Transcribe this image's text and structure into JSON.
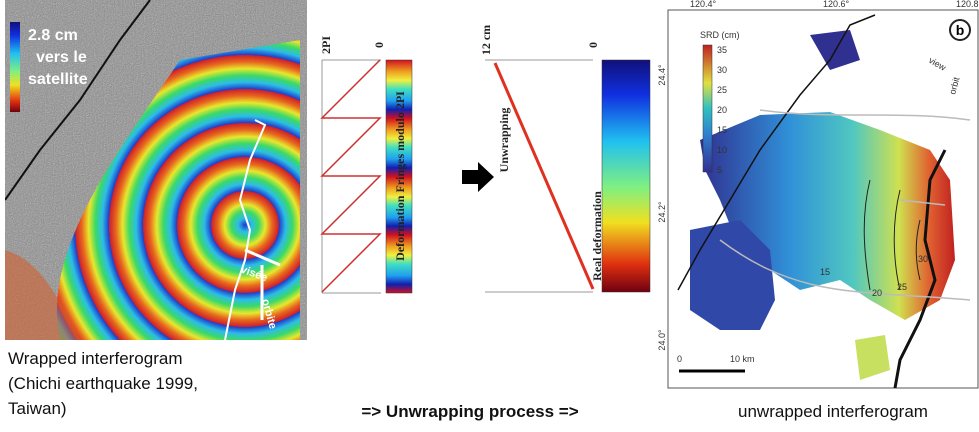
{
  "left_panel": {
    "legend": [
      "2.8 cm",
      "vers le",
      "satellite"
    ],
    "arrows": [
      "visée",
      "orbite"
    ],
    "caption": [
      "Wrapped interferogram",
      "(Chichi earthquake  1999,",
      "Taiwan)"
    ]
  },
  "middle_panel": {
    "wrapped": {
      "top_left": "2PI",
      "top_right": "0",
      "axis_label": "Deformation Fringes modulo 2PI"
    },
    "arrow_label": "Unwrapping",
    "unwrapped": {
      "top_left": "12 cm",
      "top_right": "0",
      "axis_label": "Real deformation"
    },
    "caption": "=> Unwrapping process =>"
  },
  "right_panel": {
    "x_ticks": [
      "120.4°",
      "120.6°",
      "120.8"
    ],
    "y_ticks": [
      "24.4°",
      "24.2°",
      "24.0°"
    ],
    "colorbar_title": "SRD (cm)",
    "colorbar_ticks": [
      "35",
      "30",
      "25",
      "20",
      "15",
      "10",
      "5"
    ],
    "panel_label": "b",
    "arrows": [
      "view",
      "orbit"
    ],
    "scale": [
      "0",
      "10 km"
    ],
    "contours": [
      "15",
      "20",
      "25",
      "30"
    ],
    "caption": "unwrapped interferogram"
  }
}
